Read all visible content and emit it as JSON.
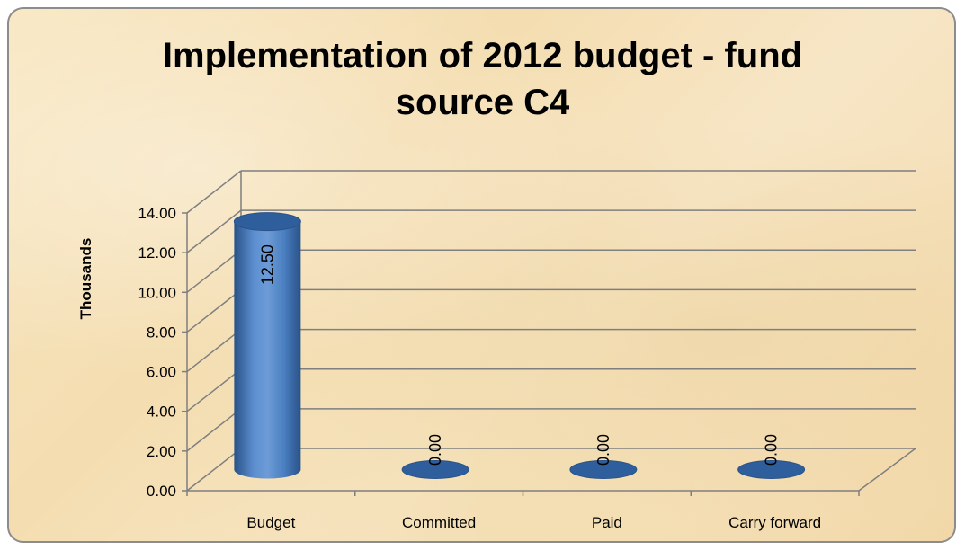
{
  "chart_data": {
    "type": "bar",
    "style": "3d-cylinder",
    "title": [
      "Implementation of 2012 budget - fund",
      "source C4"
    ],
    "ylabel": "Thousands",
    "xlabel": "",
    "categories": [
      "Budget",
      "Committed",
      "Paid",
      "Carry forward"
    ],
    "values": [
      12.5,
      0.0,
      0.0,
      0.0
    ],
    "data_labels": [
      "12.50",
      "0.00",
      "0.00",
      "0.00"
    ],
    "ylim": [
      0,
      14
    ],
    "yticks": [
      0,
      2,
      4,
      6,
      8,
      10,
      12,
      14
    ],
    "ytick_labels": [
      "0.00",
      "2.00",
      "4.00",
      "6.00",
      "8.00",
      "10.00",
      "12.00",
      "14.00"
    ],
    "grid": true,
    "legend": "none",
    "colors": {
      "bar_top": "#2e5f9c",
      "bar_light": "#6d9bd6",
      "bar_mid": "#4a7fc1",
      "bar_dark": "#2a5288",
      "gridline": "#7f7f7f",
      "background": "#f6e2ba"
    }
  }
}
